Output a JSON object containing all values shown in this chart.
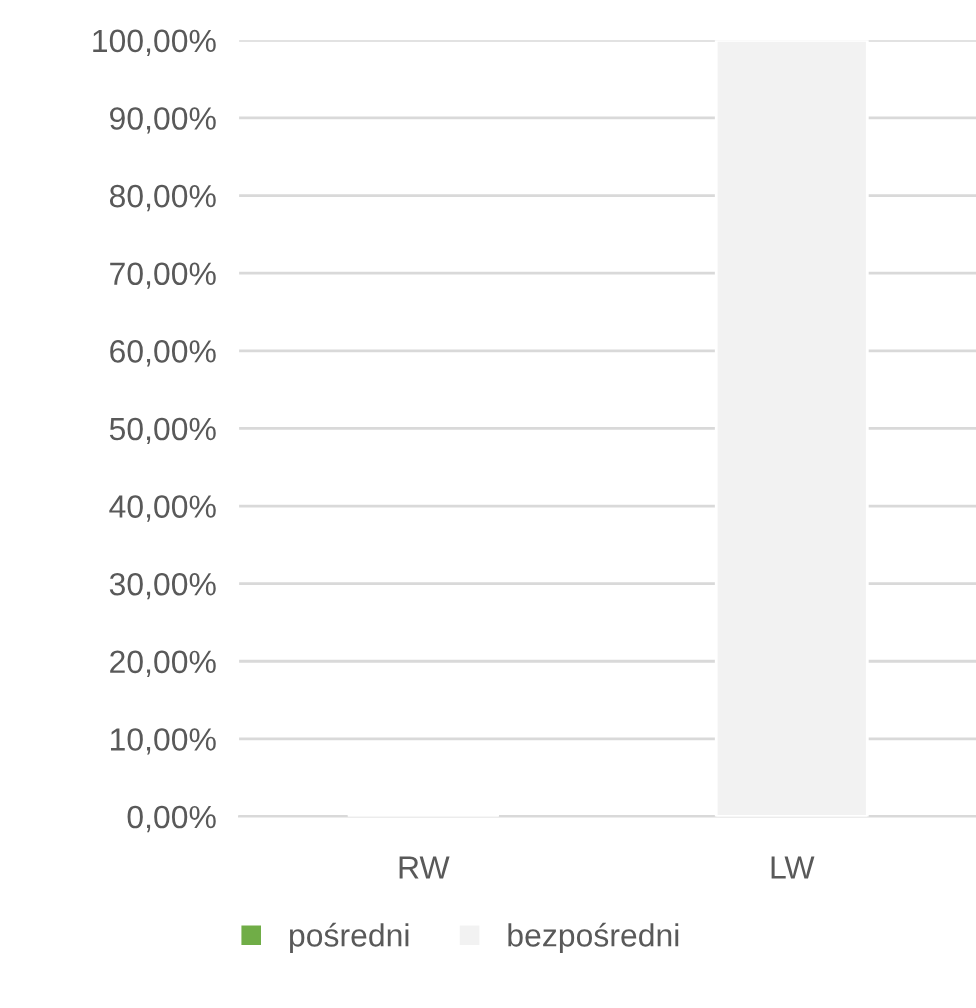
{
  "chart_data": {
    "type": "bar",
    "stacked": true,
    "categories": [
      "RW",
      "LW"
    ],
    "series": [
      {
        "name": "pośredni",
        "color": "#70ad47",
        "values": [
          0,
          0
        ]
      },
      {
        "name": "bezpośredni",
        "color": "#f2f2f2",
        "values": [
          0,
          100
        ]
      }
    ],
    "ylim": [
      0,
      100
    ],
    "yticks": [
      {
        "value": 0,
        "label": "0,00%"
      },
      {
        "value": 10,
        "label": "10,00%"
      },
      {
        "value": 20,
        "label": "20,00%"
      },
      {
        "value": 30,
        "label": "30,00%"
      },
      {
        "value": 40,
        "label": "40,00%"
      },
      {
        "value": 50,
        "label": "50,00%"
      },
      {
        "value": 60,
        "label": "60,00%"
      },
      {
        "value": 70,
        "label": "70,00%"
      },
      {
        "value": 80,
        "label": "80,00%"
      },
      {
        "value": 90,
        "label": "90,00%"
      },
      {
        "value": 100,
        "label": "100,00%"
      }
    ],
    "grid": "y",
    "legend": "bottom"
  }
}
